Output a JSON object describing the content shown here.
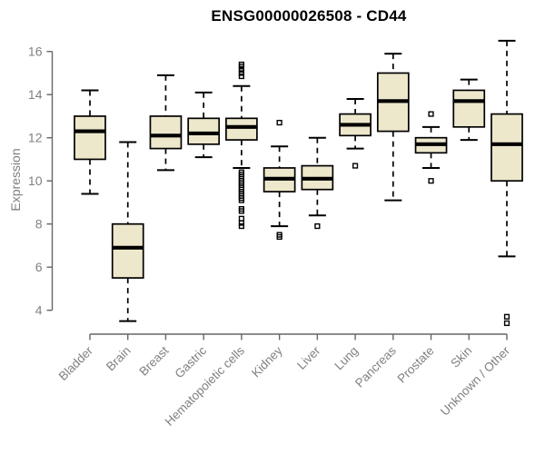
{
  "chart_data": {
    "type": "boxplot",
    "title": "ENSG00000026508 - CD44",
    "ylabel": "Expression",
    "xlabel": "",
    "yticks": [
      4,
      6,
      8,
      10,
      12,
      14,
      16
    ],
    "ylim": [
      3.2,
      16.7
    ],
    "grid": false,
    "legend": "none",
    "categories": [
      "Bladder",
      "Brain",
      "Breast",
      "Gastric",
      "Hematopoietic cells",
      "Kidney",
      "Liver",
      "Lung",
      "Pancreas",
      "Prostate",
      "Skin",
      "Unknown / Other"
    ],
    "boxes": [
      {
        "category": "Bladder",
        "whisker_low": 9.4,
        "q1": 11.0,
        "median": 12.3,
        "q3": 13.0,
        "whisker_high": 14.2,
        "outliers": []
      },
      {
        "category": "Brain",
        "whisker_low": 3.5,
        "q1": 5.5,
        "median": 6.9,
        "q3": 8.0,
        "whisker_high": 11.8,
        "outliers": []
      },
      {
        "category": "Breast",
        "whisker_low": 10.5,
        "q1": 11.5,
        "median": 12.1,
        "q3": 13.0,
        "whisker_high": 14.9,
        "outliers": []
      },
      {
        "category": "Gastric",
        "whisker_low": 11.1,
        "q1": 11.7,
        "median": 12.2,
        "q3": 12.9,
        "whisker_high": 14.1,
        "outliers": []
      },
      {
        "category": "Hematopoietic cells",
        "whisker_low": 10.6,
        "q1": 11.9,
        "median": 12.5,
        "q3": 12.9,
        "whisker_high": 14.4,
        "outliers": [
          15.4,
          15.3,
          15.15,
          15.0,
          14.85,
          10.4,
          10.3,
          10.2,
          10.1,
          10.0,
          9.9,
          9.8,
          9.7,
          9.6,
          9.5,
          9.4,
          9.3,
          9.2,
          9.1,
          8.7,
          8.6,
          8.25,
          8.05,
          7.9
        ]
      },
      {
        "category": "Kidney",
        "whisker_low": 7.9,
        "q1": 9.5,
        "median": 10.1,
        "q3": 10.6,
        "whisker_high": 11.6,
        "outliers": [
          12.7,
          7.5,
          7.4
        ]
      },
      {
        "category": "Liver",
        "whisker_low": 8.4,
        "q1": 9.6,
        "median": 10.1,
        "q3": 10.7,
        "whisker_high": 12.0,
        "outliers": [
          7.9
        ]
      },
      {
        "category": "Lung",
        "whisker_low": 11.5,
        "q1": 12.1,
        "median": 12.6,
        "q3": 13.1,
        "whisker_high": 13.8,
        "outliers": [
          10.7
        ]
      },
      {
        "category": "Pancreas",
        "whisker_low": 9.1,
        "q1": 12.3,
        "median": 13.7,
        "q3": 15.0,
        "whisker_high": 15.9,
        "outliers": []
      },
      {
        "category": "Prostate",
        "whisker_low": 10.6,
        "q1": 11.3,
        "median": 11.7,
        "q3": 12.0,
        "whisker_high": 12.5,
        "outliers": [
          13.1,
          10.0
        ]
      },
      {
        "category": "Skin",
        "whisker_low": 11.9,
        "q1": 12.5,
        "median": 13.7,
        "q3": 14.2,
        "whisker_high": 14.7,
        "outliers": []
      },
      {
        "category": "Unknown / Other",
        "whisker_low": 6.5,
        "q1": 10.0,
        "median": 11.7,
        "q3": 13.1,
        "whisker_high": 16.5,
        "outliers": [
          3.7,
          3.4
        ]
      }
    ],
    "colors": {
      "background": "#ffffff",
      "box_fill": "#EDE8CC",
      "box_border": "#000000",
      "median": "#000000",
      "whisker": "#000000",
      "axis": "#666666",
      "tick_label": "#808080",
      "title": "#000000"
    }
  }
}
